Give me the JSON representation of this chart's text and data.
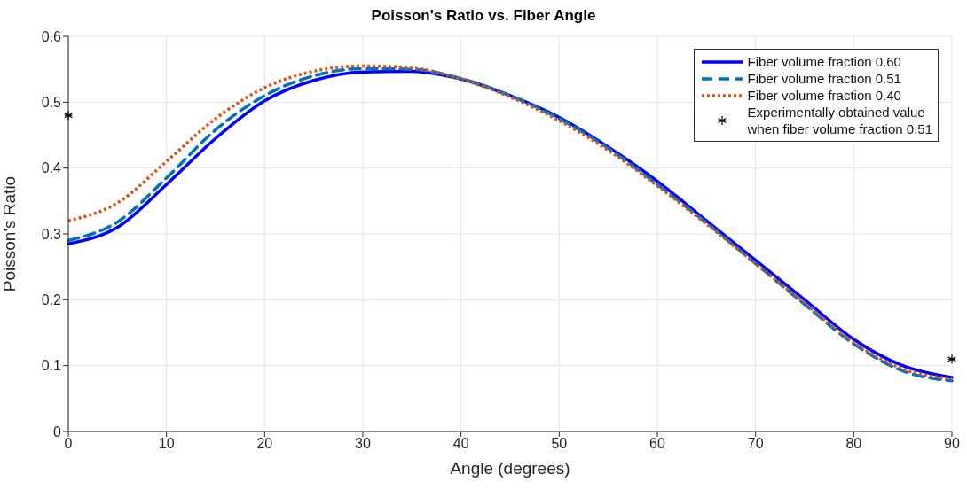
{
  "chart_data": {
    "type": "line",
    "title": "Poisson's Ratio vs. Fiber Angle",
    "xlabel": "Angle (degrees)",
    "ylabel": "Poisson's Ratio",
    "x": [
      0,
      5,
      10,
      15,
      20,
      25,
      30,
      35,
      40,
      45,
      50,
      55,
      60,
      65,
      70,
      75,
      80,
      85,
      90
    ],
    "xlim": [
      0,
      90
    ],
    "xticks": [
      0,
      10,
      20,
      30,
      40,
      50,
      60,
      70,
      80,
      90
    ],
    "ylim": [
      0,
      0.6
    ],
    "yticks": [
      0,
      0.1,
      0.2,
      0.3,
      0.4,
      0.5,
      0.6
    ],
    "grid": true,
    "legend": "top right",
    "series": [
      {
        "name": "Fiber volume fraction 0.60",
        "color": "#0000ff",
        "line_style": "solid",
        "values": [
          0.285,
          0.31,
          0.375,
          0.445,
          0.502,
          0.533,
          0.546,
          0.547,
          0.535,
          0.51,
          0.477,
          0.432,
          0.38,
          0.32,
          0.26,
          0.2,
          0.14,
          0.1,
          0.082
        ]
      },
      {
        "name": "Fiber volume fraction 0.51",
        "color": "#0072bd",
        "line_style": "dashed",
        "values": [
          0.29,
          0.318,
          0.385,
          0.458,
          0.51,
          0.54,
          0.551,
          0.55,
          0.536,
          0.51,
          0.475,
          0.43,
          0.375,
          0.317,
          0.255,
          0.193,
          0.133,
          0.092,
          0.077
        ]
      },
      {
        "name": "Fiber volume fraction 0.40",
        "color": "#d95319",
        "line_style": "dotted",
        "values": [
          0.32,
          0.347,
          0.41,
          0.475,
          0.522,
          0.547,
          0.555,
          0.552,
          0.535,
          0.508,
          0.472,
          0.427,
          0.373,
          0.315,
          0.255,
          0.195,
          0.135,
          0.095,
          0.08
        ]
      },
      {
        "name": "Experimentally obtained value\nwhen fiber volume fraction 0.51",
        "type": "scatter",
        "marker": "cross",
        "color": "#000000",
        "x": [
          0,
          90
        ],
        "values": [
          0.48,
          0.11
        ]
      }
    ]
  }
}
